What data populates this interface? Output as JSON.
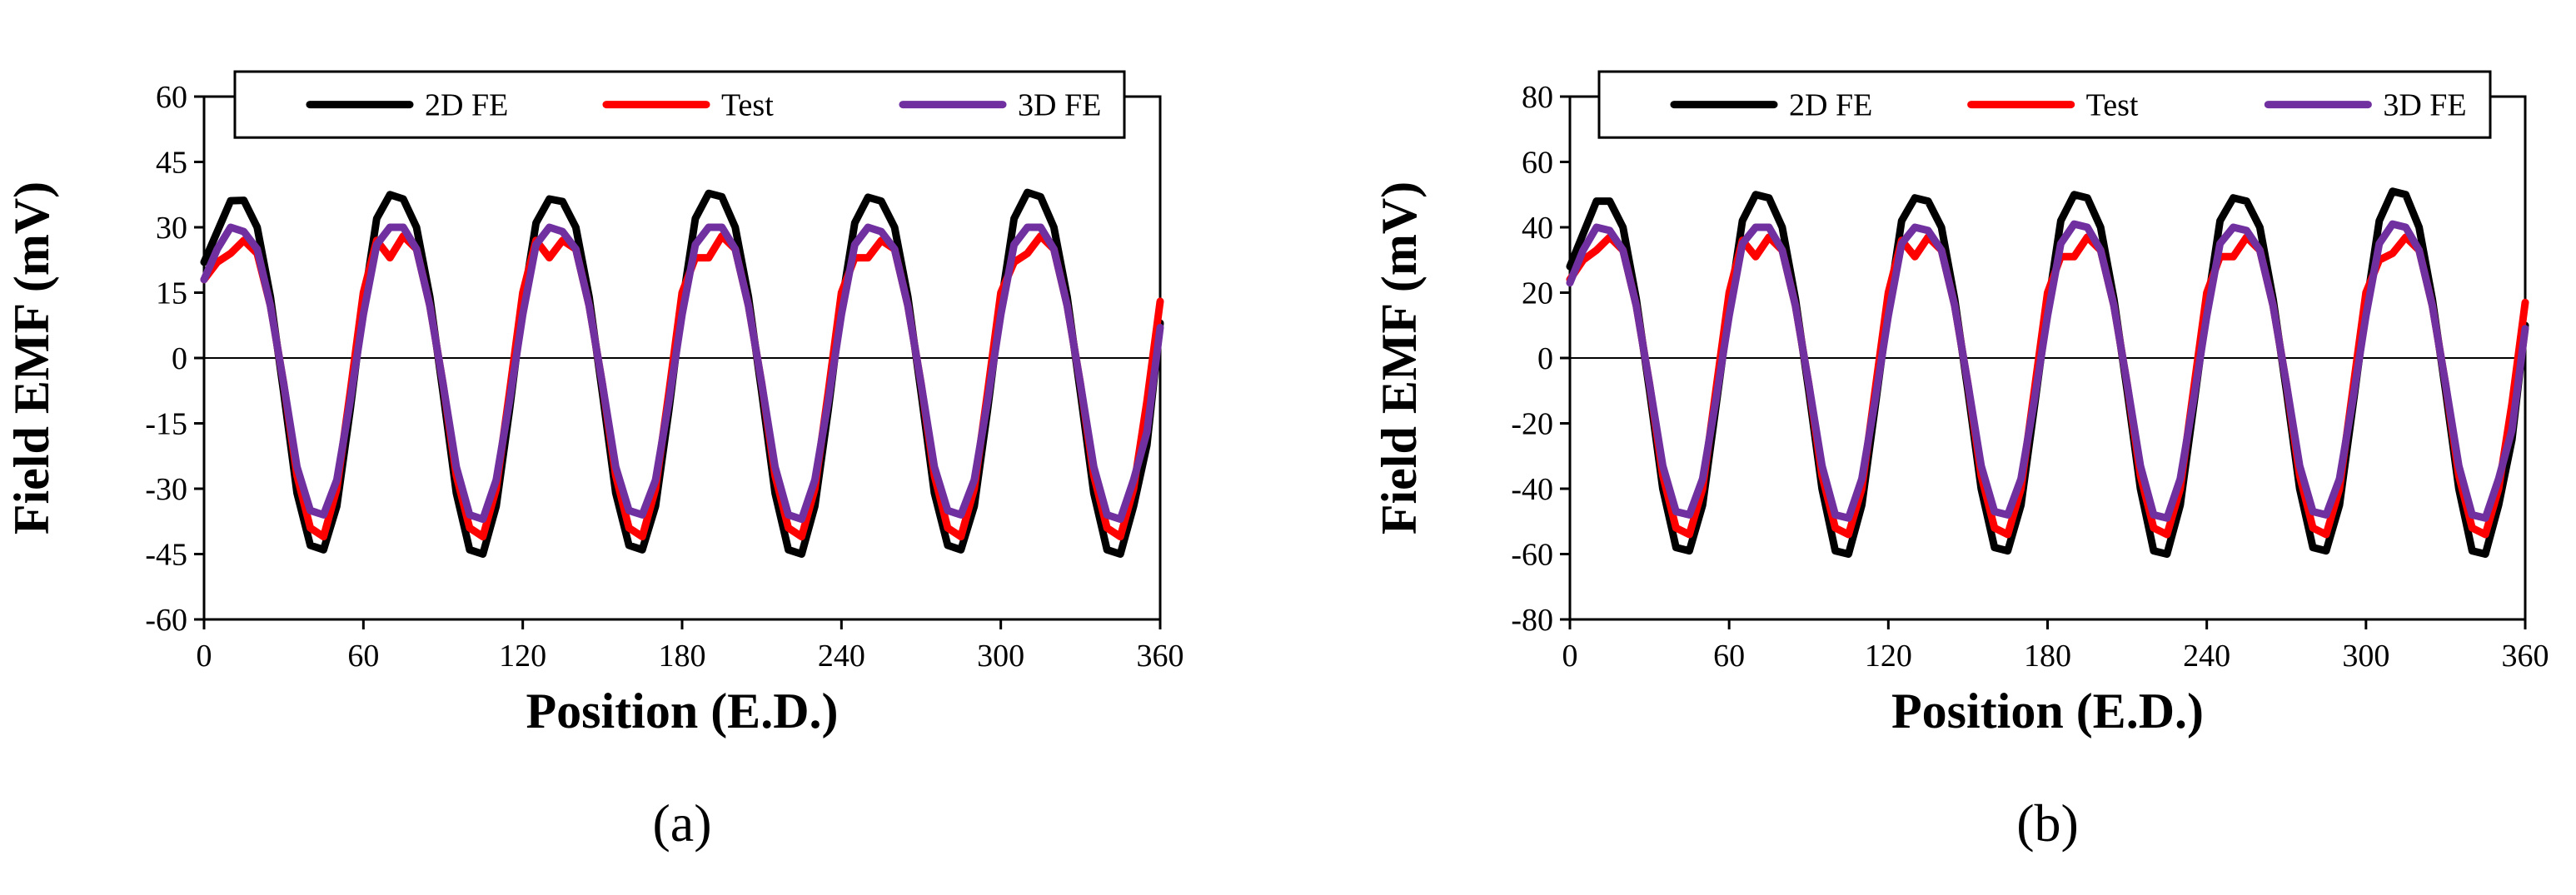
{
  "chart_data": [
    {
      "type": "line",
      "panel_label": "(a)",
      "xlabel": "Position (E.D.)",
      "ylabel": "Field EMF (mV)",
      "xlim": [
        0,
        360
      ],
      "ylim": [
        -60,
        60
      ],
      "xticks": [
        0,
        60,
        120,
        180,
        240,
        300,
        360
      ],
      "yticks": [
        -60,
        -45,
        -30,
        -15,
        0,
        15,
        30,
        45,
        60
      ],
      "legend_position": "top",
      "series": [
        {
          "name": "2D FE",
          "color": "#000000",
          "x": [
            0,
            5,
            10,
            15,
            20,
            25,
            30,
            35,
            40,
            45,
            50,
            55,
            60,
            65,
            70,
            75,
            80,
            85,
            90,
            95,
            100,
            105,
            110,
            115,
            120,
            125,
            130,
            135,
            140,
            145,
            150,
            155,
            160,
            165,
            170,
            175,
            180,
            185,
            190,
            195,
            200,
            205,
            210,
            215,
            220,
            225,
            230,
            235,
            240,
            245,
            250,
            255,
            260,
            265,
            270,
            275,
            280,
            285,
            290,
            295,
            300,
            305,
            310,
            315,
            320,
            325,
            330,
            335,
            340,
            345,
            350,
            355,
            360
          ],
          "y": [
            22,
            29,
            36.1,
            36.2,
            30,
            14,
            -8,
            -31,
            -43,
            -44,
            -34,
            -12,
            12,
            32,
            37.5,
            36.5,
            30,
            14,
            -8,
            -31,
            -44,
            -45,
            -34,
            -12,
            12,
            31,
            36.5,
            35.9,
            30,
            14,
            -8,
            -31,
            -43,
            -44,
            -34,
            -12,
            12,
            32,
            37.8,
            37,
            30,
            14,
            -8,
            -31,
            -44,
            -45,
            -34,
            -12,
            12,
            31,
            36.9,
            36,
            30,
            14,
            -8,
            -31,
            -43,
            -44,
            -34,
            -12,
            12,
            32,
            38,
            37,
            30,
            14,
            -8,
            -31,
            -44,
            -45,
            -34,
            -20,
            8
          ]
        },
        {
          "name": "Test",
          "color": "#ff0000",
          "x": [
            0,
            5,
            10,
            15,
            20,
            25,
            30,
            35,
            40,
            45,
            50,
            55,
            60,
            65,
            70,
            75,
            80,
            85,
            90,
            95,
            100,
            105,
            110,
            115,
            120,
            125,
            130,
            135,
            140,
            145,
            150,
            155,
            160,
            165,
            170,
            175,
            180,
            185,
            190,
            195,
            200,
            205,
            210,
            215,
            220,
            225,
            230,
            235,
            240,
            245,
            250,
            255,
            260,
            265,
            270,
            275,
            280,
            285,
            290,
            295,
            300,
            305,
            310,
            315,
            320,
            325,
            330,
            335,
            340,
            345,
            350,
            355,
            360
          ],
          "y": [
            18,
            22,
            24,
            27,
            24,
            12,
            -6,
            -27,
            -39,
            -41,
            -30,
            -8,
            15,
            27,
            23,
            28,
            25,
            12,
            -6,
            -27,
            -39,
            -41,
            -30,
            -8,
            15,
            27,
            23,
            27,
            25,
            12,
            -6,
            -27,
            -39,
            -41,
            -30,
            -8,
            15,
            23,
            23,
            28,
            25,
            12,
            -6,
            -27,
            -39,
            -41,
            -30,
            -8,
            15,
            23,
            23,
            27,
            25,
            12,
            -6,
            -27,
            -39,
            -41,
            -30,
            -8,
            15,
            22,
            24,
            28,
            25,
            12,
            -6,
            -27,
            -39,
            -41,
            -30,
            -10,
            13
          ]
        },
        {
          "name": "3D FE",
          "color": "#7030a0",
          "x": [
            0,
            5,
            10,
            15,
            20,
            25,
            30,
            35,
            40,
            45,
            50,
            55,
            60,
            65,
            70,
            75,
            80,
            85,
            90,
            95,
            100,
            105,
            110,
            115,
            120,
            125,
            130,
            135,
            140,
            145,
            150,
            155,
            160,
            165,
            170,
            175,
            180,
            185,
            190,
            195,
            200,
            205,
            210,
            215,
            220,
            225,
            230,
            235,
            240,
            245,
            250,
            255,
            260,
            265,
            270,
            275,
            280,
            285,
            290,
            295,
            300,
            305,
            310,
            315,
            320,
            325,
            330,
            335,
            340,
            345,
            350,
            355,
            360
          ],
          "y": [
            18,
            25,
            30,
            29,
            25,
            12,
            -6,
            -25,
            -35,
            -36,
            -28,
            -10,
            10,
            26,
            30,
            30,
            25,
            12,
            -6,
            -25,
            -36,
            -37,
            -28,
            -10,
            10,
            26,
            30,
            29,
            25,
            12,
            -6,
            -25,
            -35,
            -36,
            -28,
            -10,
            10,
            26,
            30,
            30,
            25,
            12,
            -6,
            -25,
            -36,
            -37,
            -28,
            -10,
            10,
            26,
            30,
            29,
            25,
            12,
            -6,
            -25,
            -35,
            -36,
            -28,
            -10,
            10,
            26,
            30,
            30,
            25,
            12,
            -6,
            -25,
            -36,
            -37,
            -28,
            -17,
            7
          ]
        }
      ]
    },
    {
      "type": "line",
      "panel_label": "(b)",
      "xlabel": "Position (E.D.)",
      "ylabel": "Field EMF (mV)",
      "xlim": [
        0,
        360
      ],
      "ylim": [
        -80,
        80
      ],
      "xticks": [
        0,
        60,
        120,
        180,
        240,
        300,
        360
      ],
      "yticks": [
        -80,
        -60,
        -40,
        -20,
        0,
        20,
        40,
        60,
        80
      ],
      "legend_position": "top",
      "series": [
        {
          "name": "2D FE",
          "color": "#000000",
          "x": [
            0,
            5,
            10,
            15,
            20,
            25,
            30,
            35,
            40,
            45,
            50,
            55,
            60,
            65,
            70,
            75,
            80,
            85,
            90,
            95,
            100,
            105,
            110,
            115,
            120,
            125,
            130,
            135,
            140,
            145,
            150,
            155,
            160,
            165,
            170,
            175,
            180,
            185,
            190,
            195,
            200,
            205,
            210,
            215,
            220,
            225,
            230,
            235,
            240,
            245,
            250,
            255,
            260,
            265,
            270,
            275,
            280,
            285,
            290,
            295,
            300,
            305,
            310,
            315,
            320,
            325,
            330,
            335,
            340,
            345,
            350,
            355,
            360
          ],
          "y": [
            28,
            38,
            48,
            48,
            40,
            18,
            -10,
            -40,
            -58,
            -59,
            -45,
            -15,
            15,
            42,
            50,
            49,
            40,
            18,
            -10,
            -40,
            -59,
            -60,
            -45,
            -15,
            15,
            42,
            49,
            48,
            40,
            18,
            -10,
            -40,
            -58,
            -59,
            -45,
            -15,
            15,
            42,
            50,
            49,
            40,
            18,
            -10,
            -40,
            -59,
            -60,
            -45,
            -15,
            15,
            42,
            49,
            48,
            40,
            18,
            -10,
            -40,
            -58,
            -59,
            -45,
            -15,
            15,
            42,
            51,
            50,
            40,
            18,
            -10,
            -40,
            -59,
            -60,
            -45,
            -25,
            10
          ]
        },
        {
          "name": "Test",
          "color": "#ff0000",
          "x": [
            0,
            5,
            10,
            15,
            20,
            25,
            30,
            35,
            40,
            45,
            50,
            55,
            60,
            65,
            70,
            75,
            80,
            85,
            90,
            95,
            100,
            105,
            110,
            115,
            120,
            125,
            130,
            135,
            140,
            145,
            150,
            155,
            160,
            165,
            170,
            175,
            180,
            185,
            190,
            195,
            200,
            205,
            210,
            215,
            220,
            225,
            230,
            235,
            240,
            245,
            250,
            255,
            260,
            265,
            270,
            275,
            280,
            285,
            290,
            295,
            300,
            305,
            310,
            315,
            320,
            325,
            330,
            335,
            340,
            345,
            350,
            355,
            360
          ],
          "y": [
            24,
            30,
            33,
            37,
            33,
            16,
            -8,
            -36,
            -52,
            -54,
            -40,
            -10,
            20,
            36,
            31,
            37,
            33,
            16,
            -8,
            -36,
            -52,
            -54,
            -40,
            -10,
            20,
            36,
            31,
            37,
            33,
            16,
            -8,
            -36,
            -52,
            -54,
            -40,
            -10,
            20,
            31,
            31,
            37,
            33,
            16,
            -8,
            -36,
            -52,
            -54,
            -40,
            -10,
            20,
            31,
            31,
            37,
            33,
            16,
            -8,
            -36,
            -52,
            -54,
            -40,
            -10,
            20,
            30,
            32,
            37,
            33,
            16,
            -8,
            -36,
            -52,
            -54,
            -40,
            -14,
            17
          ]
        },
        {
          "name": "3D FE",
          "color": "#7030a0",
          "x": [
            0,
            5,
            10,
            15,
            20,
            25,
            30,
            35,
            40,
            45,
            50,
            55,
            60,
            65,
            70,
            75,
            80,
            85,
            90,
            95,
            100,
            105,
            110,
            115,
            120,
            125,
            130,
            135,
            140,
            145,
            150,
            155,
            160,
            165,
            170,
            175,
            180,
            185,
            190,
            195,
            200,
            205,
            210,
            215,
            220,
            225,
            230,
            235,
            240,
            245,
            250,
            255,
            260,
            265,
            270,
            275,
            280,
            285,
            290,
            295,
            300,
            305,
            310,
            315,
            320,
            325,
            330,
            335,
            340,
            345,
            350,
            355,
            360
          ],
          "y": [
            23,
            33,
            40,
            39,
            33,
            16,
            -8,
            -33,
            -47,
            -48,
            -37,
            -13,
            13,
            35,
            40,
            40,
            33,
            16,
            -8,
            -33,
            -48,
            -49,
            -37,
            -13,
            13,
            35,
            40,
            39,
            33,
            16,
            -8,
            -33,
            -47,
            -48,
            -37,
            -13,
            13,
            35,
            41,
            40,
            33,
            16,
            -8,
            -33,
            -48,
            -49,
            -37,
            -13,
            13,
            35,
            40,
            39,
            33,
            16,
            -8,
            -33,
            -47,
            -48,
            -37,
            -13,
            13,
            35,
            41,
            40,
            33,
            16,
            -8,
            -33,
            -48,
            -49,
            -37,
            -22,
            9
          ]
        }
      ]
    }
  ]
}
